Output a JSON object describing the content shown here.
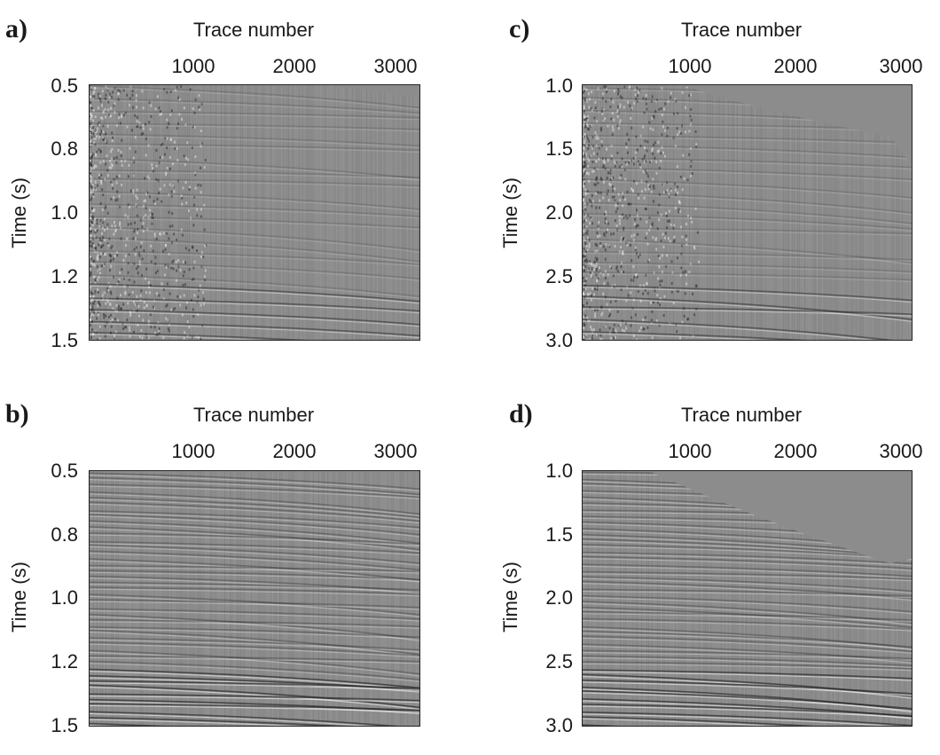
{
  "panels": [
    {
      "letter": "a)",
      "xlabel": "Trace number",
      "ylabel": "Time (s)",
      "xticks": [
        "1000",
        "2000",
        "3000"
      ],
      "yticks": [
        "0.5",
        "0.8",
        "1.0",
        "1.2",
        "1.5"
      ]
    },
    {
      "letter": "b)",
      "xlabel": "Trace number",
      "ylabel": "Time (s)",
      "xticks": [
        "1000",
        "2000",
        "3000"
      ],
      "yticks": [
        "0.5",
        "0.8",
        "1.0",
        "1.2",
        "1.5"
      ]
    },
    {
      "letter": "c)",
      "xlabel": "Trace number",
      "ylabel": "Time (s)",
      "xticks": [
        "1000",
        "2000",
        "3000"
      ],
      "yticks": [
        "1.0",
        "1.5",
        "2.0",
        "2.5",
        "3.0"
      ]
    },
    {
      "letter": "d)",
      "xlabel": "Trace number",
      "ylabel": "Time (s)",
      "xticks": [
        "1000",
        "2000",
        "3000"
      ],
      "yticks": [
        "1.0",
        "1.5",
        "2.0",
        "2.5",
        "3.0"
      ]
    }
  ]
}
